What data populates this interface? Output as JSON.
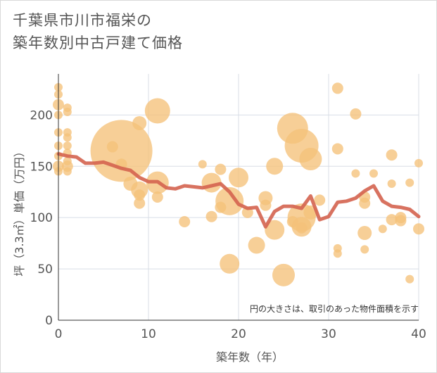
{
  "title_line1": "千葉県市川市福栄の",
  "title_line2": "築年数別中古戸建て価格",
  "chart_data": {
    "type": "scatter",
    "xlabel": "築年数（年）",
    "ylabel": "坪（3.3㎡）単価（万円）",
    "xlim": [
      0,
      40
    ],
    "ylim": [
      0,
      240
    ],
    "xticks": [
      0,
      10,
      20,
      30,
      40
    ],
    "yticks": [
      0,
      50,
      100,
      150,
      200
    ],
    "grid": true,
    "note": "円の大きさは、取引のあった物件面積を示す",
    "colors": {
      "bubble": "#f5c27a",
      "line": "#d4634f",
      "grid": "#d8dde6"
    },
    "bubbles": [
      {
        "x": 0,
        "y": 227,
        "s": 3
      },
      {
        "x": 0,
        "y": 220,
        "s": 3
      },
      {
        "x": 0,
        "y": 210,
        "s": 4
      },
      {
        "x": 0,
        "y": 200,
        "s": 3
      },
      {
        "x": 0,
        "y": 183,
        "s": 3
      },
      {
        "x": 0,
        "y": 170,
        "s": 3
      },
      {
        "x": 0,
        "y": 160,
        "s": 3
      },
      {
        "x": 0,
        "y": 150,
        "s": 4
      },
      {
        "x": 0,
        "y": 145,
        "s": 3
      },
      {
        "x": 1,
        "y": 207,
        "s": 3
      },
      {
        "x": 1,
        "y": 203,
        "s": 3
      },
      {
        "x": 1,
        "y": 183,
        "s": 3
      },
      {
        "x": 1,
        "y": 178,
        "s": 3
      },
      {
        "x": 1,
        "y": 170,
        "s": 3
      },
      {
        "x": 1,
        "y": 163,
        "s": 3
      },
      {
        "x": 1,
        "y": 155,
        "s": 3
      },
      {
        "x": 1,
        "y": 150,
        "s": 4
      },
      {
        "x": 1,
        "y": 145,
        "s": 3
      },
      {
        "x": 6,
        "y": 169,
        "s": 4
      },
      {
        "x": 7,
        "y": 165,
        "s": 22
      },
      {
        "x": 7,
        "y": 152,
        "s": 4
      },
      {
        "x": 8,
        "y": 133,
        "s": 5
      },
      {
        "x": 9,
        "y": 192,
        "s": 5
      },
      {
        "x": 9,
        "y": 127,
        "s": 6
      },
      {
        "x": 9,
        "y": 122,
        "s": 4
      },
      {
        "x": 9,
        "y": 114,
        "s": 4
      },
      {
        "x": 11,
        "y": 204,
        "s": 9
      },
      {
        "x": 11,
        "y": 134,
        "s": 8
      },
      {
        "x": 11,
        "y": 120,
        "s": 4
      },
      {
        "x": 14,
        "y": 96,
        "s": 4
      },
      {
        "x": 16,
        "y": 152,
        "s": 3
      },
      {
        "x": 17,
        "y": 134,
        "s": 7
      },
      {
        "x": 17,
        "y": 101,
        "s": 4
      },
      {
        "x": 18,
        "y": 147,
        "s": 4
      },
      {
        "x": 18,
        "y": 110,
        "s": 4
      },
      {
        "x": 19,
        "y": 116,
        "s": 10
      },
      {
        "x": 19,
        "y": 55,
        "s": 7
      },
      {
        "x": 20,
        "y": 139,
        "s": 7
      },
      {
        "x": 21,
        "y": 105,
        "s": 4
      },
      {
        "x": 22,
        "y": 73,
        "s": 6
      },
      {
        "x": 23,
        "y": 119,
        "s": 5
      },
      {
        "x": 23,
        "y": 112,
        "s": 4
      },
      {
        "x": 24,
        "y": 150,
        "s": 6
      },
      {
        "x": 24,
        "y": 88,
        "s": 7
      },
      {
        "x": 25,
        "y": 44,
        "s": 8
      },
      {
        "x": 26,
        "y": 187,
        "s": 11
      },
      {
        "x": 26,
        "y": 96,
        "s": 4
      },
      {
        "x": 27,
        "y": 170,
        "s": 12
      },
      {
        "x": 27,
        "y": 100,
        "s": 10
      },
      {
        "x": 27,
        "y": 91,
        "s": 7
      },
      {
        "x": 27,
        "y": 90,
        "s": 4
      },
      {
        "x": 28,
        "y": 157,
        "s": 8
      },
      {
        "x": 28,
        "y": 105,
        "s": 5
      },
      {
        "x": 29,
        "y": 117,
        "s": 4
      },
      {
        "x": 31,
        "y": 226,
        "s": 4
      },
      {
        "x": 31,
        "y": 167,
        "s": 4
      },
      {
        "x": 31,
        "y": 70,
        "s": 3
      },
      {
        "x": 31,
        "y": 65,
        "s": 3
      },
      {
        "x": 33,
        "y": 201,
        "s": 4
      },
      {
        "x": 33,
        "y": 143,
        "s": 3
      },
      {
        "x": 34,
        "y": 120,
        "s": 4
      },
      {
        "x": 34,
        "y": 114,
        "s": 4
      },
      {
        "x": 34,
        "y": 85,
        "s": 5
      },
      {
        "x": 34,
        "y": 69,
        "s": 3
      },
      {
        "x": 35,
        "y": 143,
        "s": 3
      },
      {
        "x": 36,
        "y": 89,
        "s": 3
      },
      {
        "x": 37,
        "y": 161,
        "s": 4
      },
      {
        "x": 37,
        "y": 133,
        "s": 3
      },
      {
        "x": 37,
        "y": 98,
        "s": 4
      },
      {
        "x": 38,
        "y": 100,
        "s": 4
      },
      {
        "x": 38,
        "y": 97,
        "s": 4
      },
      {
        "x": 39,
        "y": 134,
        "s": 3
      },
      {
        "x": 39,
        "y": 40,
        "s": 3
      },
      {
        "x": 40,
        "y": 153,
        "s": 3
      },
      {
        "x": 40,
        "y": 89,
        "s": 4
      }
    ],
    "trend": {
      "x": [
        0,
        1,
        2,
        3,
        4,
        5,
        6,
        7,
        8,
        9,
        10,
        11,
        12,
        13,
        14,
        15,
        16,
        17,
        18,
        19,
        20,
        21,
        22,
        23,
        24,
        25,
        26,
        27,
        28,
        29,
        30,
        31,
        32,
        33,
        34,
        35,
        36,
        37,
        38,
        39,
        40
      ],
      "y": [
        162,
        160,
        159,
        153,
        153,
        154,
        151,
        148,
        146,
        139,
        135,
        135,
        129,
        128,
        131,
        130,
        129,
        131,
        133,
        125,
        113,
        109,
        110,
        91,
        106,
        111,
        111,
        109,
        121,
        98,
        101,
        115,
        116,
        119,
        126,
        131,
        116,
        111,
        110,
        108,
        101
      ]
    }
  }
}
